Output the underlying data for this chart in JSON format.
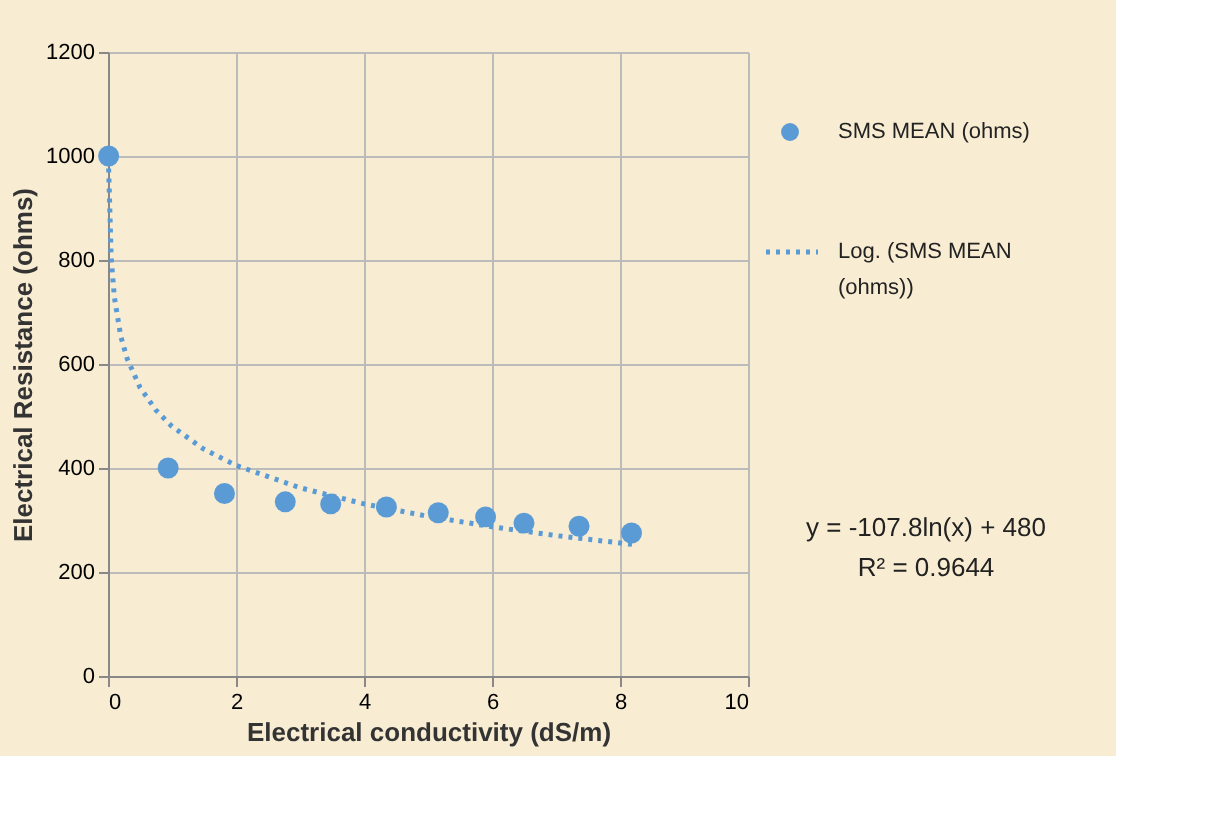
{
  "chart_data": {
    "type": "scatter",
    "xlabel": "Electrical conductivity (dS/m)",
    "ylabel": "Electrical Resistance (ohms)",
    "series": [
      {
        "name": "SMS MEAN (ohms)",
        "color": "#5b9bd5",
        "marker": "circle",
        "x": [
          0.01,
          0.94,
          1.82,
          2.77,
          3.48,
          4.35,
          5.16,
          5.9,
          6.5,
          7.36,
          8.18
        ],
        "values": [
          1000,
          400,
          351,
          335,
          331,
          325,
          314,
          306,
          294,
          288,
          275
        ]
      },
      {
        "name": "Log. (SMS MEAN (ohms))",
        "color": "#5b9bd5",
        "type": "line",
        "line_style": "dotted",
        "x": [
          0.01,
          0.05,
          0.1,
          0.2,
          0.3,
          0.5,
          0.75,
          1,
          1.5,
          2,
          3,
          4,
          5,
          6,
          7,
          8.2
        ],
        "values": [
          976,
          803,
          728,
          653,
          610,
          555,
          511,
          480,
          436,
          405,
          362,
          331,
          307,
          287,
          270,
          253
        ]
      }
    ],
    "xlim": [
      0,
      10
    ],
    "xticks": [
      0,
      2,
      4,
      6,
      8,
      10
    ],
    "ylim": [
      0,
      1200
    ],
    "yticks": [
      0,
      200,
      400,
      600,
      800,
      1000,
      1200
    ],
    "grid": true,
    "legend": "right",
    "annotations": [
      "y = -107.8ln(x) + 480",
      "R² = 0.9644"
    ]
  }
}
